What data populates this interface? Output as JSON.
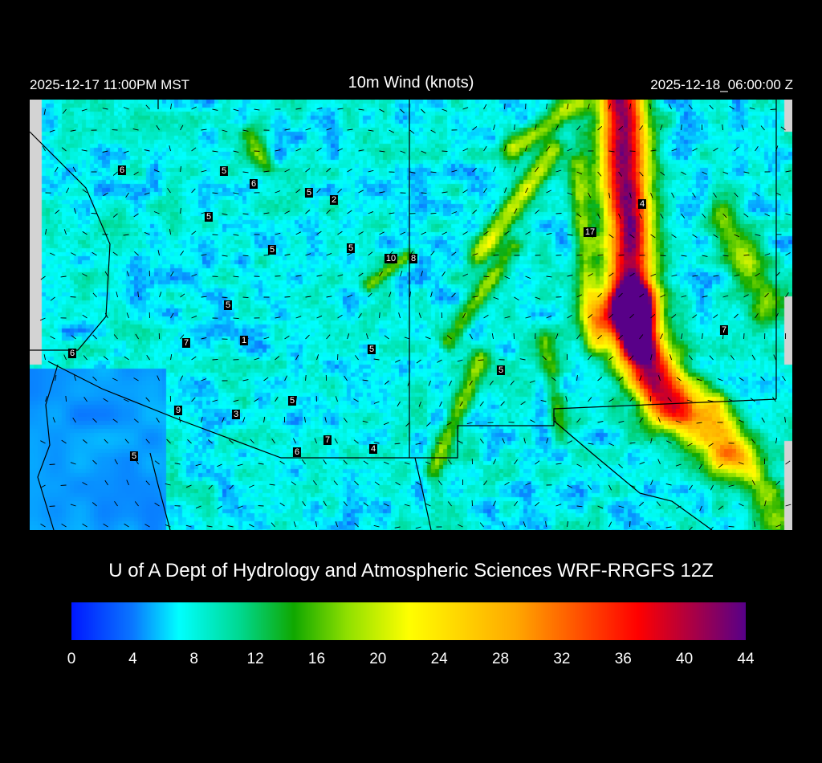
{
  "header": {
    "valid_local": "2025-12-17 11:00PM MST",
    "title": "10m Wind (knots)",
    "valid_utc": "2025-12-18_06:00:00 Z"
  },
  "map": {
    "station_labels": [
      "6",
      "5",
      "6",
      "5",
      "2",
      "5",
      "5",
      "5",
      "10",
      "8",
      "5",
      "7",
      "1",
      "6",
      "5",
      "5",
      "9",
      "3",
      "5",
      "7",
      "4",
      "6",
      "5",
      "4",
      "17",
      "7"
    ],
    "missing_color": "#d3d3d3",
    "border_color": "#000000"
  },
  "credit": "U of A Dept of Hydrology and Atmospheric Sciences WRF-RRGFS 12Z",
  "colorbar": {
    "min": 0,
    "max": 44,
    "units": "knots",
    "tick_labels": [
      "0",
      "4",
      "8",
      "12",
      "16",
      "20",
      "24",
      "28",
      "32",
      "36",
      "40",
      "44"
    ],
    "stops": [
      {
        "v": 0,
        "color": "#0018ff"
      },
      {
        "v": 4,
        "color": "#0a78ff"
      },
      {
        "v": 7,
        "color": "#00ffff"
      },
      {
        "v": 11,
        "color": "#00d890"
      },
      {
        "v": 14.5,
        "color": "#10a800"
      },
      {
        "v": 18,
        "color": "#90e000"
      },
      {
        "v": 22,
        "color": "#ffff00"
      },
      {
        "v": 29,
        "color": "#ffa800"
      },
      {
        "v": 37,
        "color": "#ff0000"
      },
      {
        "v": 44,
        "color": "#580088"
      }
    ]
  }
}
